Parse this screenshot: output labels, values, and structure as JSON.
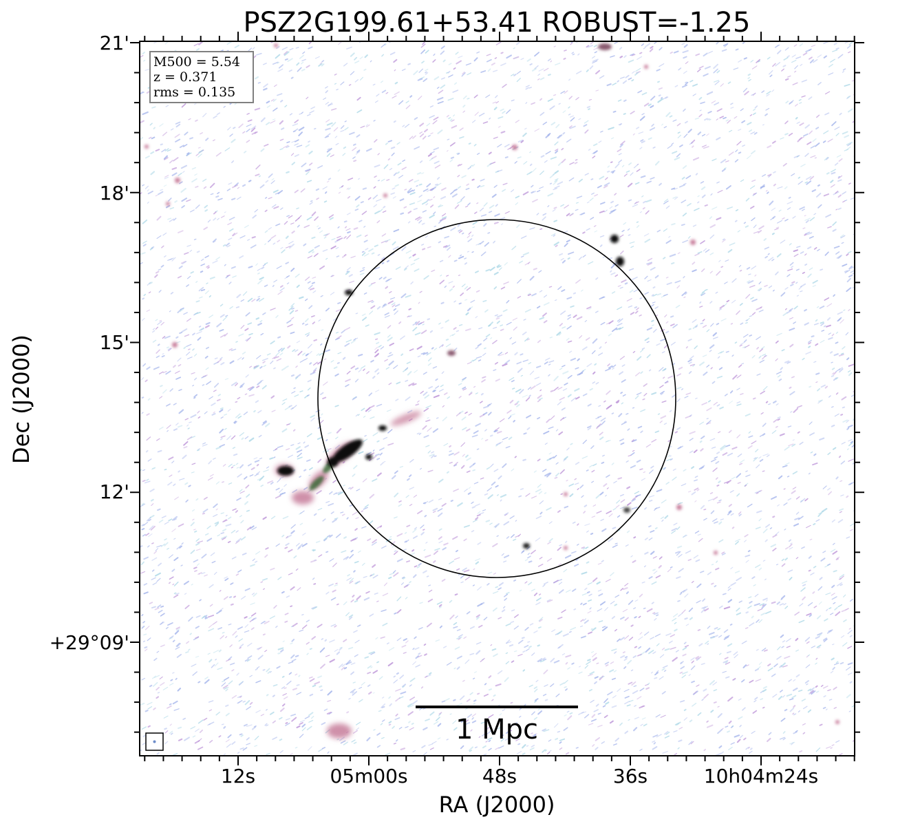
{
  "title": "PSZ2G199.61+53.41 ROBUST=-1.25",
  "xlabel": "RA (J2000)",
  "ylabel": "Dec (J2000)",
  "x_ticks": [
    "12s",
    "05m00s",
    "48s",
    "36s",
    "10h04m24s"
  ],
  "y_ticks": [
    "21'",
    "18'",
    "15'",
    "12'",
    "+29°09'"
  ],
  "info": {
    "m500": "M500 = 5.54",
    "z": "z = 0.371",
    "rms": "rms = 0.135"
  },
  "scalebar": {
    "label": "1 Mpc"
  },
  "colors": {
    "noise_blue": "#9fb0ea",
    "noise_cyan": "#a9d6e6",
    "noise_purple": "#b98fd6",
    "source_pink": "#c77c9a",
    "source_green": "#3d6b3a",
    "source_dark": "#0a0a0a"
  }
}
